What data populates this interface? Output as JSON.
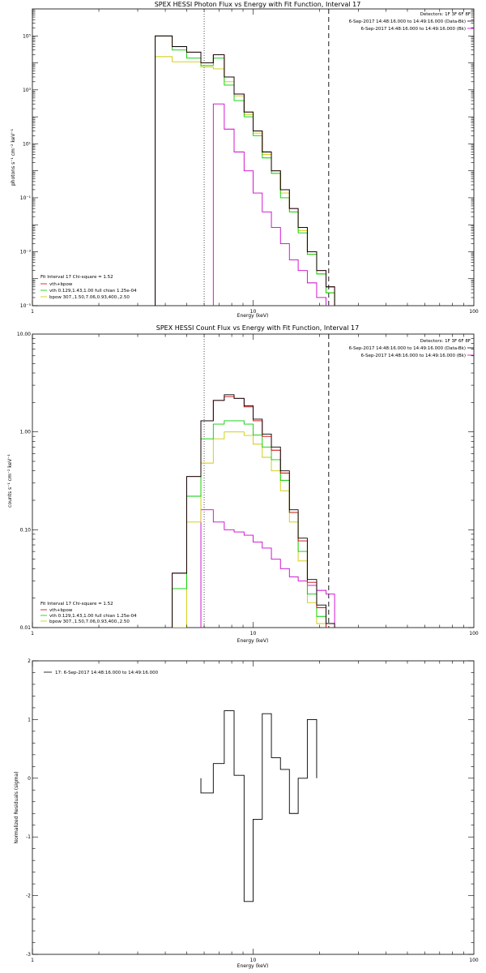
{
  "colors": {
    "total": "#cc0000",
    "vth": "#00cc00",
    "bpow": "#cccc00",
    "bk": "#cc00cc",
    "data": "#000000"
  },
  "panels": {
    "photon": {
      "title": "SPEX HESSI Photon Flux vs Energy with Fit Function, Interval 17",
      "detectors": "Detectors: 1F 3F 6F 8F",
      "line1": "6-Sep-2017 14:48:16.000 to 14:49:16.000 (Data-Bk)",
      "line2": "6-Sep-2017 14:48:16.000 to 14:49:16.000 (Bk)",
      "fit_line1": "Fit Interval 17   Chi-square = 1.52",
      "fit_line2": "vth+bpow",
      "fit_line3": "vth 0.129,1.43,1.00  full chian 1.25e-04",
      "fit_line4": "bpow 307.,1.50,7.06,0.93,400.,2.50"
    },
    "count": {
      "title": "SPEX HESSI Count Flux vs Energy with Fit Function, Interval 17",
      "detectors": "Detectors: 1F 3F 6F 8F",
      "line1": "6-Sep-2017 14:48:16.000 to 14:49:16.000 (Data-Bk)",
      "line2": "6-Sep-2017 14:48:16.000 to 14:49:16.000 (Bk)",
      "fit_line1": "Fit Interval 17   Chi-square = 1.52",
      "fit_line2": "vth+bpow",
      "fit_line3": "vth 0.129,1.43,1.00  full chian 1.25e-04",
      "fit_line4": "bpow 307.,1.50,7.06,0.93,400.,2.50"
    },
    "resid": {
      "legend": "17:  6-Sep-2017 14:48:16.000 to 14:49:16.000"
    }
  },
  "chart_data": [
    {
      "type": "line",
      "step": true,
      "title": "SPEX HESSI Photon Flux vs Energy with Fit Function, Interval 17",
      "xlabel": "Energy (keV)",
      "ylabel": "photons s⁻¹ cm⁻² keV⁻¹",
      "xscale": "log",
      "yscale": "log",
      "xlim": [
        1,
        100
      ],
      "ylim": [
        1e-05,
        1000000
      ],
      "xticks": [
        1,
        10,
        100
      ],
      "yticks": [
        1e-05,
        0.001,
        0.1,
        10,
        1000,
        100000
      ],
      "yticklabels": [
        "10⁻⁵",
        "10⁻³",
        "10⁻¹",
        "10¹",
        "10³",
        "10⁵"
      ],
      "vlines": [
        6,
        22
      ],
      "edges": [
        3.6,
        4.3,
        5.0,
        5.8,
        6.6,
        7.4,
        8.2,
        9.1,
        10.0,
        11.0,
        12.1,
        13.3,
        14.6,
        16.0,
        17.6,
        19.4,
        21.4,
        23.4
      ],
      "series": [
        {
          "name": "data",
          "values": [
            100000,
            40000,
            25000,
            10000,
            20000,
            3000,
            700,
            150,
            30,
            5,
            1,
            0.2,
            0.04,
            0.008,
            0.001,
            0.0002,
            5e-05
          ]
        },
        {
          "name": "vth+bpow",
          "values": [
            100000,
            40000,
            25000,
            10000,
            20000,
            3000,
            700,
            150,
            30,
            5,
            1,
            0.2,
            0.04,
            0.008,
            0.001,
            0.0002,
            5e-05
          ]
        },
        {
          "name": "vth",
          "values": [
            100000,
            30000,
            15000,
            8000,
            15000,
            1500,
            400,
            100,
            20,
            3,
            0.8,
            0.1,
            0.03,
            0.005,
            0.0008,
            0.00015,
            3e-05
          ]
        },
        {
          "name": "bpow",
          "values": [
            17000,
            11000,
            11000,
            7000,
            6000,
            2000,
            600,
            120,
            25,
            4,
            0.8,
            0.15,
            0.03,
            0.006,
            0.0008,
            0.00015,
            3e-05
          ]
        },
        {
          "name": "bk",
          "values": [
            null,
            null,
            null,
            null,
            300,
            35,
            5,
            1,
            0.15,
            0.03,
            0.008,
            0.002,
            0.0005,
            0.0002,
            7e-05,
            2e-05,
            1e-05
          ]
        }
      ]
    },
    {
      "type": "line",
      "step": true,
      "title": "SPEX HESSI Count Flux vs Energy with Fit Function, Interval 17",
      "xlabel": "Energy (keV)",
      "ylabel": "counts s⁻¹ cm⁻² keV⁻¹",
      "xscale": "log",
      "yscale": "log",
      "xlim": [
        1,
        100
      ],
      "ylim": [
        0.01,
        10
      ],
      "xticks": [
        1,
        10,
        100
      ],
      "yticks": [
        0.01,
        0.1,
        1,
        10
      ],
      "yticklabels": [
        "0.01",
        "0.10",
        "1.00",
        "10.00"
      ],
      "vlines": [
        6,
        22
      ],
      "edges": [
        4.3,
        5.0,
        5.8,
        6.6,
        7.4,
        8.2,
        9.1,
        10.0,
        11.0,
        12.1,
        13.3,
        14.6,
        16.0,
        17.6,
        19.4,
        21.4,
        23.4
      ],
      "series": [
        {
          "name": "data",
          "values": [
            0.036,
            0.35,
            1.3,
            2.1,
            2.4,
            2.2,
            1.85,
            1.35,
            0.95,
            0.7,
            0.4,
            0.16,
            0.082,
            0.031,
            0.017,
            0.011
          ]
        },
        {
          "name": "vth+bpow",
          "values": [
            0.036,
            0.35,
            1.3,
            2.1,
            2.3,
            2.2,
            1.8,
            1.3,
            0.9,
            0.65,
            0.38,
            0.15,
            0.077,
            0.029,
            0.016,
            0.01
          ]
        },
        {
          "name": "vth",
          "values": [
            0.025,
            0.22,
            0.85,
            1.2,
            1.3,
            1.3,
            1.2,
            0.93,
            0.7,
            0.52,
            0.32,
            0.15,
            0.06,
            0.022,
            0.013,
            0.008
          ]
        },
        {
          "name": "bpow",
          "values": [
            0.01,
            0.12,
            0.48,
            0.85,
            1.0,
            1.0,
            0.92,
            0.75,
            0.55,
            0.4,
            0.25,
            0.12,
            0.048,
            0.018,
            0.011,
            0.0085
          ]
        },
        {
          "name": "bk",
          "values": [
            null,
            null,
            0.16,
            0.12,
            0.1,
            0.095,
            0.088,
            0.075,
            0.065,
            0.05,
            0.04,
            0.033,
            0.03,
            0.027,
            0.024,
            0.022
          ]
        }
      ]
    },
    {
      "type": "line",
      "step": true,
      "xlabel": "Energy (keV)",
      "ylabel": "Normalized Residuals (sigma)",
      "xscale": "log",
      "yscale": "linear",
      "xlim": [
        1,
        100
      ],
      "ylim": [
        -3,
        2
      ],
      "xticks": [
        1,
        10,
        100
      ],
      "yticks": [
        -3,
        -2,
        -1,
        0,
        1,
        2
      ],
      "edges": [
        5.8,
        6.6,
        7.4,
        8.2,
        9.1,
        10.0,
        11.0,
        12.1,
        13.3,
        14.6,
        16.0,
        17.6,
        19.4,
        21.4
      ],
      "series": [
        {
          "name": "17",
          "values": [
            -0.25,
            0.25,
            1.15,
            0.05,
            -2.1,
            -0.7,
            1.1,
            0.35,
            0.15,
            -0.6,
            0.0,
            1.0
          ]
        }
      ]
    }
  ]
}
